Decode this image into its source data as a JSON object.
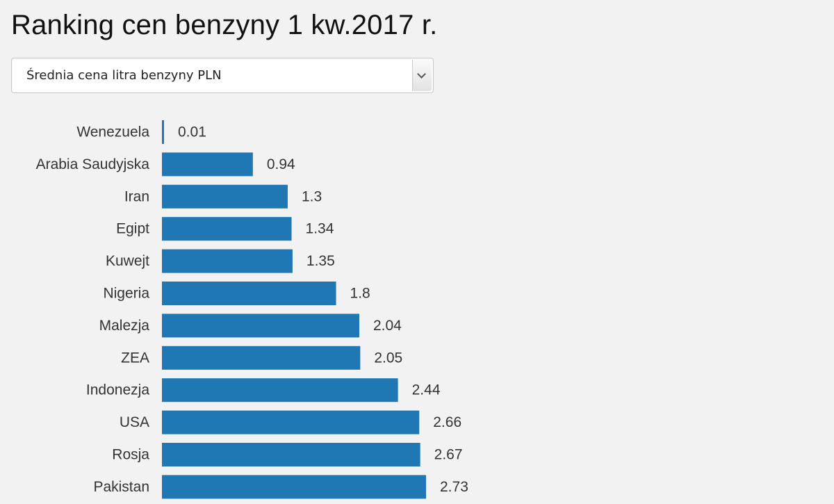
{
  "title": "Ranking cen benzyny 1 kw.2017 r.",
  "selector": {
    "selected": "Średnia cena litra benzyny PLN"
  },
  "colors": {
    "bar": "#1f77b4",
    "background": "#f2f2f2"
  },
  "chart_data": {
    "type": "bar",
    "orientation": "horizontal",
    "title": "Ranking cen benzyny 1 kw.2017 r.",
    "categories": [
      "Wenezuela",
      "Arabia Saudyjska",
      "Iran",
      "Egipt",
      "Kuwejt",
      "Nigeria",
      "Malezja",
      "ZEA",
      "Indonezja",
      "USA",
      "Rosja",
      "Pakistan"
    ],
    "values": [
      0.01,
      0.94,
      1.3,
      1.34,
      1.35,
      1.8,
      2.04,
      2.05,
      2.44,
      2.66,
      2.67,
      2.73
    ],
    "value_labels": [
      "0.01",
      "0.94",
      "1.3",
      "1.34",
      "1.35",
      "1.8",
      "2.04",
      "2.05",
      "2.44",
      "2.66",
      "2.67",
      "2.73"
    ],
    "xlim": [
      0,
      2.73
    ],
    "grid": false,
    "legend": "none"
  }
}
